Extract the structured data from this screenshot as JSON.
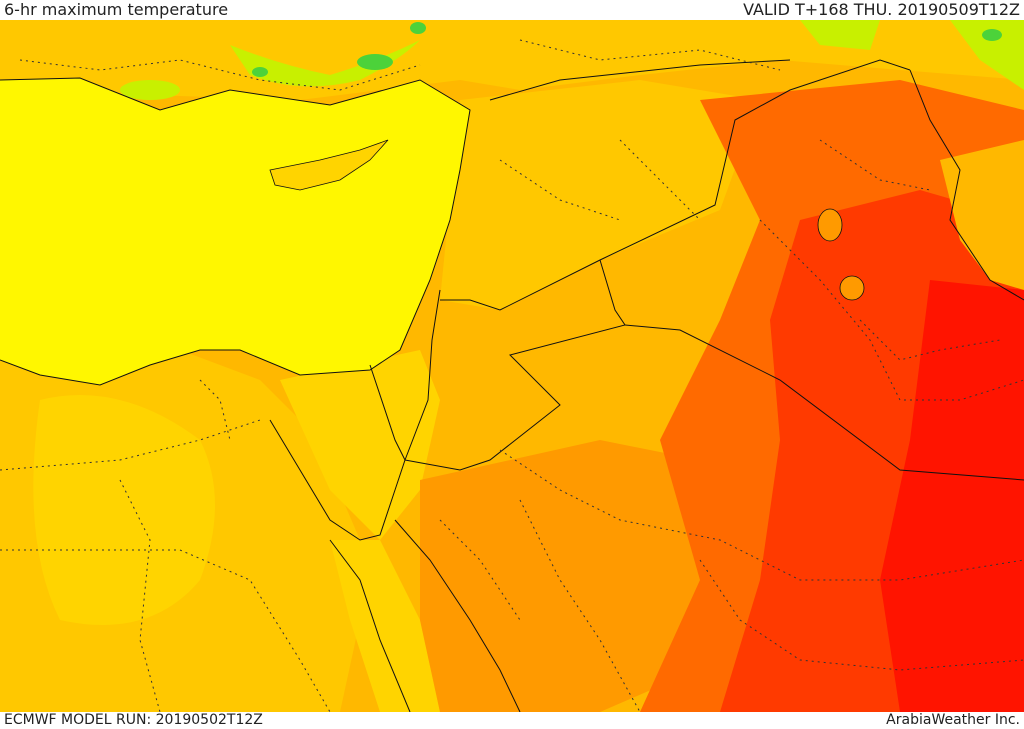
{
  "header": {
    "title": "6-hr maximum temperature",
    "valid": "VALID T+168 THU. 20190509T12Z"
  },
  "footer": {
    "model_run": "ECMWF MODEL RUN: 20190502T12Z",
    "credit": "ArabiaWeather Inc."
  },
  "palette": {
    "sea_yellow": "#fff700",
    "yellow_orange": "#ffd400",
    "light_orange": "#ffb800",
    "orange": "#ff9a00",
    "dark_orange": "#ff6a00",
    "red_orange": "#ff3a00",
    "red": "#ff1400",
    "green": "#c8f000",
    "bright_green": "#4cd23a",
    "border": "#111111"
  }
}
